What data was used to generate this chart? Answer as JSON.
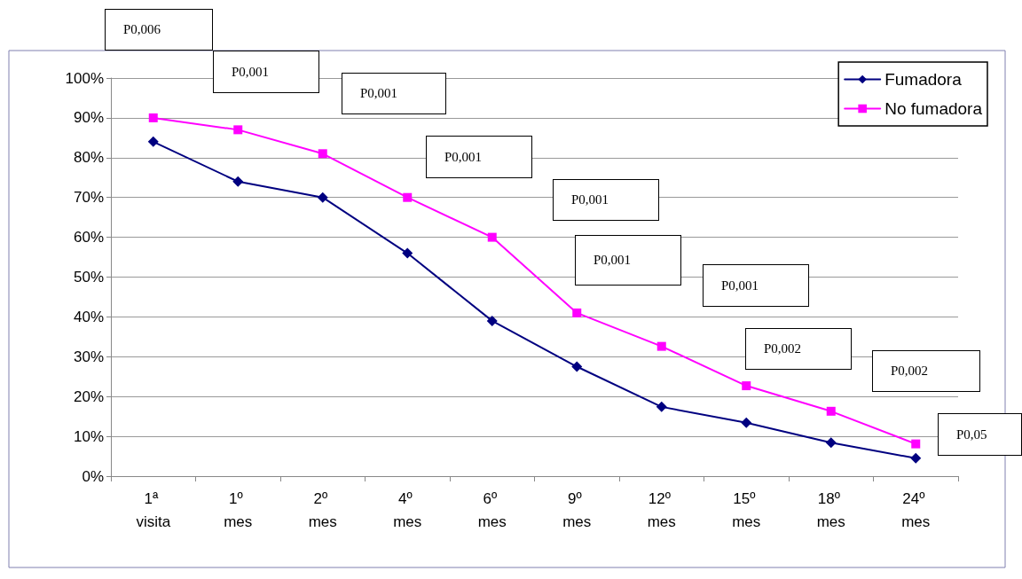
{
  "chart_data": {
    "type": "line",
    "categories": [
      "1ª visita",
      "1º mes",
      "2º mes",
      "4º mes",
      "6º mes",
      "9º mes",
      "12º mes",
      "15º mes",
      "18º mes",
      "24º mes"
    ],
    "series": [
      {
        "name": "Fumadora",
        "color": "#000080",
        "marker": "diamond",
        "values": [
          84,
          74,
          70,
          56,
          39,
          27.5,
          17.4,
          13.4,
          8.4,
          4.5
        ]
      },
      {
        "name": "No fumadora",
        "color": "#ff00ff",
        "marker": "square",
        "values": [
          90,
          87,
          81,
          70,
          60,
          41,
          32.6,
          22.7,
          16.3,
          8.1
        ]
      }
    ],
    "ylim": [
      0,
      100
    ],
    "yticks": [
      {
        "value": 0,
        "label": "0%"
      },
      {
        "value": 10,
        "label": "10%"
      },
      {
        "value": 20,
        "label": "20%"
      },
      {
        "value": 30,
        "label": "30%"
      },
      {
        "value": 40,
        "label": "40%"
      },
      {
        "value": 50,
        "label": "50%"
      },
      {
        "value": 60,
        "label": "60%"
      },
      {
        "value": 70,
        "label": "70%"
      },
      {
        "value": 80,
        "label": "80%"
      },
      {
        "value": 90,
        "label": "90%"
      },
      {
        "value": 100,
        "label": "100%"
      }
    ],
    "grid": "y",
    "legend": "top right",
    "line_style": "solid",
    "annotations": [
      "P0,006",
      "P0,001",
      "P0,001",
      "P0,001",
      "P0,001",
      "P0,001",
      "P0,001",
      "P0,002",
      "P0,002",
      "P0,05"
    ]
  }
}
